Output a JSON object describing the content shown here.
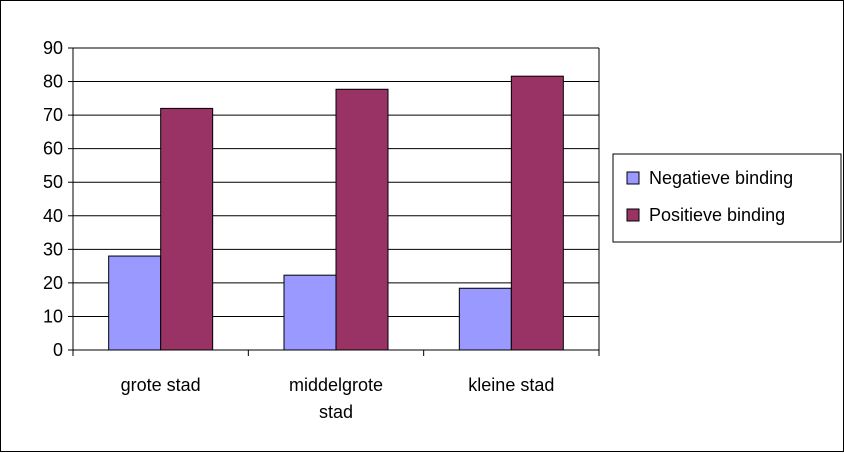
{
  "chart_data": {
    "type": "bar",
    "categories": [
      [
        "grote stad"
      ],
      [
        "middelgrote",
        "stad"
      ],
      [
        "kleine stad"
      ]
    ],
    "series": [
      {
        "name": "Negatieve binding",
        "values": [
          28,
          22.3,
          18.4
        ],
        "color": "#9999ff"
      },
      {
        "name": "Positieve binding",
        "values": [
          72,
          77.7,
          81.6
        ],
        "color": "#993366"
      }
    ],
    "ylim": [
      0,
      90
    ],
    "yticks": [
      0,
      10,
      20,
      30,
      40,
      50,
      60,
      70,
      80,
      90
    ],
    "grid": true,
    "legend_position": "right",
    "title": "",
    "xlabel": "",
    "ylabel": ""
  }
}
